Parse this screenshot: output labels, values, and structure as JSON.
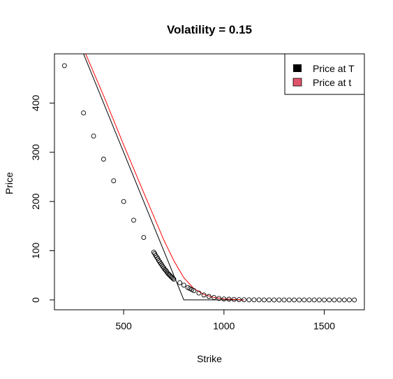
{
  "chart_data": {
    "type": "scatter",
    "title": "Volatility = 0.15",
    "xlabel": "Strike",
    "ylabel": "Price",
    "xlim": [
      155,
      1700
    ],
    "ylim": [
      -20,
      500
    ],
    "x_ticks": [
      500,
      1000,
      1500
    ],
    "y_ticks": [
      0,
      100,
      200,
      300,
      400
    ],
    "grid": false,
    "legend_position": "top-right",
    "legend": [
      {
        "label": "Price at T",
        "color": "#000000"
      },
      {
        "label": "Price at t",
        "color": "#DF536B"
      }
    ],
    "series": [
      {
        "name": "Price at T",
        "kind": "line",
        "color": "#000000",
        "x": [
          200,
          300,
          400,
          500,
          600,
          700,
          800,
          900,
          1000,
          1100
        ],
        "y": [
          600,
          500,
          400,
          300,
          200,
          100,
          0,
          0,
          0,
          0
        ]
      },
      {
        "name": "Price at t",
        "kind": "line",
        "color": "#FF0000",
        "x": [
          200,
          300,
          400,
          500,
          600,
          700,
          750,
          800,
          850,
          900,
          950,
          1000,
          1050,
          1100
        ],
        "y": [
          610,
          510,
          415,
          315,
          218,
          122,
          80,
          45,
          23,
          11,
          5,
          2,
          1,
          0
        ]
      },
      {
        "kind": "points",
        "color": "#000000",
        "x": [
          205,
          300,
          350,
          400,
          450,
          500,
          550,
          600,
          650,
          655,
          660,
          665,
          670,
          675,
          680,
          685,
          690,
          695,
          700,
          705,
          710,
          715,
          720,
          725,
          730,
          735,
          740,
          745,
          750,
          780,
          800,
          820,
          830,
          840,
          850,
          875,
          900,
          925,
          950,
          975,
          1000,
          1025,
          1050,
          1075,
          1100,
          1125,
          1150,
          1175,
          1200,
          1225,
          1250,
          1275,
          1300,
          1325,
          1350,
          1375,
          1400,
          1425,
          1450,
          1475,
          1500,
          1525,
          1550,
          1575,
          1600,
          1625,
          1650
        ],
        "y": [
          476,
          380,
          333,
          286,
          242,
          200,
          162,
          127,
          97,
          94,
          90,
          87,
          84,
          80,
          77,
          74,
          71,
          68,
          65,
          62,
          60,
          57,
          54,
          52,
          50,
          48,
          46,
          44,
          42,
          35,
          30,
          25,
          23,
          21,
          19,
          14,
          10,
          7,
          5,
          3,
          2,
          1.5,
          1,
          0.5,
          0.3,
          0.2,
          0.1,
          0.1,
          0,
          0,
          0,
          0,
          0,
          0,
          0,
          0,
          0,
          0,
          0,
          0,
          0,
          0,
          0,
          0,
          0,
          0,
          0
        ]
      }
    ]
  }
}
